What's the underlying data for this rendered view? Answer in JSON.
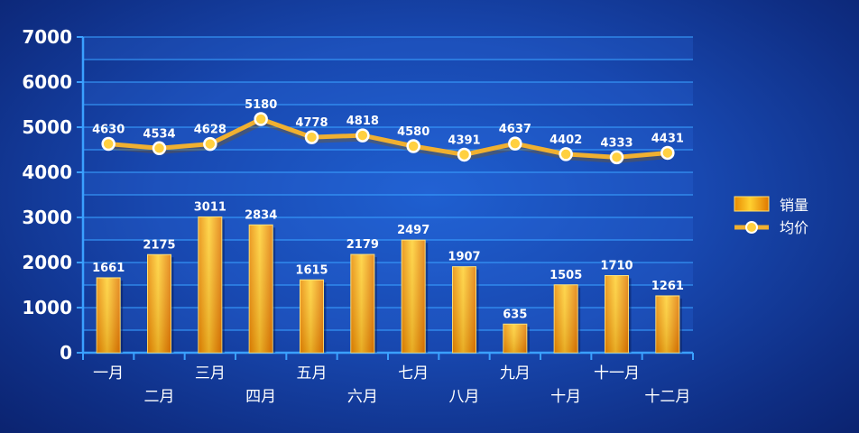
{
  "chart_data": {
    "type": "bar",
    "categories": [
      "一月",
      "二月",
      "三月",
      "四月",
      "五月",
      "六月",
      "七月",
      "八月",
      "九月",
      "十月",
      "十一月",
      "十二月"
    ],
    "series": [
      {
        "name": "销量",
        "type": "bar",
        "values": [
          1661,
          2175,
          3011,
          2834,
          1615,
          2179,
          2497,
          1907,
          635,
          1505,
          1710,
          1261
        ]
      },
      {
        "name": "均价",
        "type": "line",
        "values": [
          4630,
          4534,
          4628,
          5180,
          4778,
          4818,
          4580,
          4391,
          4637,
          4402,
          4333,
          4431
        ]
      }
    ],
    "y_ticks": [
      "7000",
      "6000",
      "5000",
      "4000",
      "3000",
      "2000",
      "1000",
      "0"
    ],
    "ylim": [
      0,
      7000
    ],
    "grid": true,
    "legend_position": "right",
    "colors": {
      "bar": "#f5a800",
      "line": "#f0b030",
      "marker": "#ffd040",
      "grid": "#3aa0ff",
      "background": "#1848b0"
    }
  }
}
